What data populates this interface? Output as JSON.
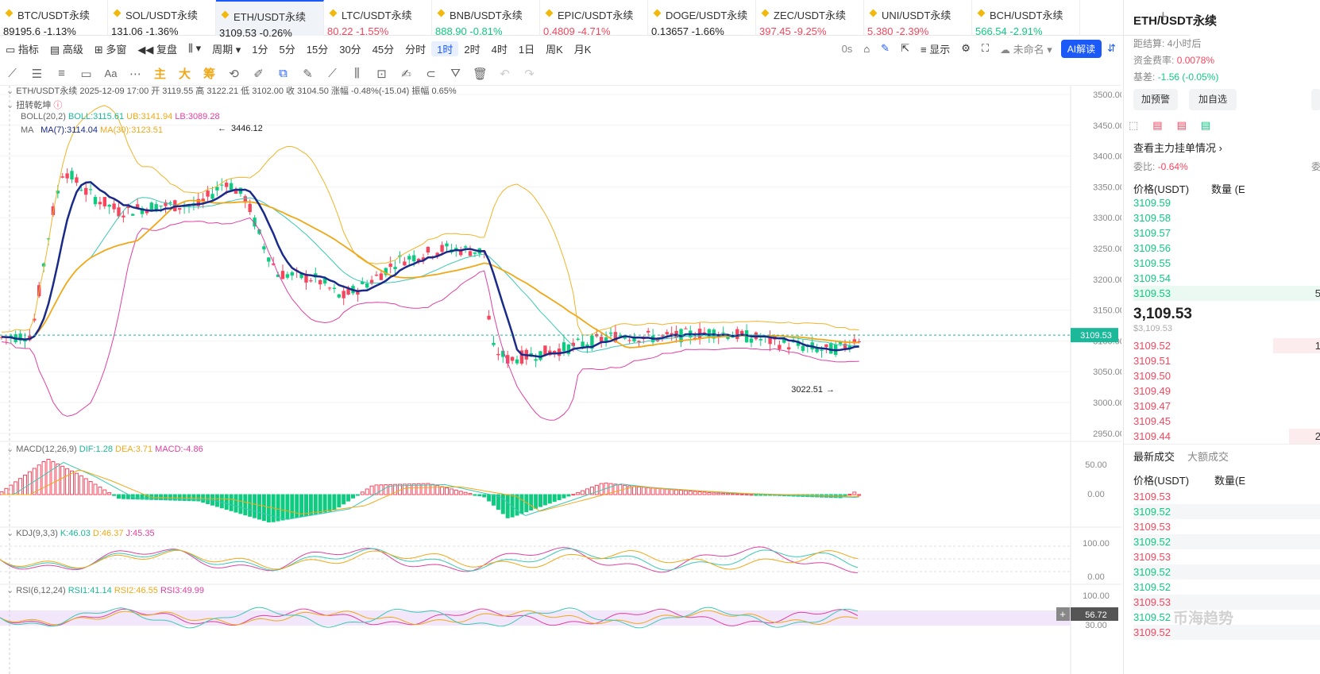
{
  "tickers": [
    {
      "name": "BTC/USDT永续",
      "price": "89195.6",
      "change": "-1.13%",
      "price_color": "blk"
    },
    {
      "name": "SOL/USDT永续",
      "price": "131.06",
      "change": "-1.36%",
      "price_color": "blk"
    },
    {
      "name": "ETH/USDT永续",
      "price": "3109.53",
      "change": "-0.26%",
      "price_color": "blk"
    },
    {
      "name": "LTC/USDT永续",
      "price": "80.22",
      "change": "-1.55%",
      "price_color": "dn"
    },
    {
      "name": "BNB/USDT永续",
      "price": "888.90",
      "change": "-0.81%",
      "price_color": "up"
    },
    {
      "name": "EPIC/USDT永续",
      "price": "0.4809",
      "change": "-4.71%",
      "price_color": "dn"
    },
    {
      "name": "DOGE/USDT永续",
      "price": "0.13657",
      "change": "-1.66%",
      "price_color": "blk"
    },
    {
      "name": "ZEC/USDT永续",
      "price": "397.45",
      "change": "-9.25%",
      "price_color": "dn"
    },
    {
      "name": "UNI/USDT永续",
      "price": "5.380",
      "change": "-2.39%",
      "price_color": "dn"
    },
    {
      "name": "BCH/USDT永续",
      "price": "566.54",
      "change": "-2.91%",
      "price_color": "up"
    }
  ],
  "toolbar": {
    "indicator": "指标",
    "advanced": "高级",
    "multi": "多窗",
    "replay": "复盘",
    "period": "周期",
    "intervals": [
      "1分",
      "5分",
      "15分",
      "30分",
      "45分",
      "分时",
      "1时",
      "2时",
      "4时",
      "1日",
      "周K",
      "月K"
    ],
    "active_interval": "1时",
    "zero_s": "0s",
    "display": "显示",
    "unnamed": "未命名",
    "ai": "AI解读"
  },
  "draw_labels": [
    "主",
    "大",
    "筹"
  ],
  "chart_info": {
    "symbol_line": "ETH/USDT永续 2025-12-09 17:00 开 3119.55 高 3122.21 低 3102.00 收 3104.50 涨幅 -0.48%(-15.04) 振幅 0.65%",
    "twist": "扭转乾坤",
    "boll_label": "BOLL(20,2)",
    "boll": "BOLL:3115.61",
    "ub": "UB:3141.94",
    "lb": "LB:3089.28",
    "ma_label": "MA",
    "ma7": "MA(7):3114.04",
    "ma30": "MA(30):3123.51",
    "high_mark": "3446.12",
    "low_mark": "3022.51",
    "current": "3109.53",
    "macd_label": "MACD(12,26,9)",
    "dif": "DIF:1.28",
    "dea": "DEA:3.71",
    "macd": "MACD:-4.86",
    "kdj_label": "KDJ(9,3,3)",
    "k": "K:46.03",
    "d": "D:46.37",
    "j": "J:45.35",
    "rsi_label": "RSI(6,12,24)",
    "rsi1": "RSI1:41.14",
    "rsi2": "RSI2:46.55",
    "rsi3": "RSI3:49.99",
    "rsi_now": "56.72"
  },
  "price_axis": [
    "3500.00",
    "3450.00",
    "3400.00",
    "3350.00",
    "3300.00",
    "3250.00",
    "3200.00",
    "3150.00",
    "3100.00",
    "3050.00",
    "3000.00",
    "2950.00"
  ],
  "macd_axis": [
    "50.00",
    "0.00"
  ],
  "kdj_axis": [
    "100.00",
    "0.00"
  ],
  "rsi_axis": [
    "100.00",
    "30.00"
  ],
  "side": {
    "title": "ETH/USDT永续",
    "settle_label": "距结算:",
    "settle": "4小时后",
    "funding_label": "资金费率:",
    "funding": "0.0078%",
    "basis_label": "基差:",
    "basis": "-1.56 (-0.05%)",
    "btn_alert": "加预警",
    "btn_watch": "加自选",
    "orders_link": "查看主力挂单情况",
    "ratio_label": "委比:",
    "ratio": "-0.64%",
    "ratio_right": "委",
    "col_price": "价格(USDT)",
    "col_qty": "数量 (E",
    "asks": [
      "3109.59",
      "3109.58",
      "3109.57",
      "3109.56",
      "3109.55",
      "3109.54",
      "3109.53"
    ],
    "ask_last_qty": "5",
    "last_price": "3,109.53",
    "last_price_usd": "$3,109.53",
    "bids": [
      "3109.52",
      "3109.51",
      "3109.50",
      "3109.49",
      "3109.47",
      "3109.45",
      "3109.44"
    ],
    "bid_qty": [
      "1",
      "",
      "",
      "",
      "",
      "",
      "2"
    ],
    "tab_latest": "最新成交",
    "tab_large": "大额成交",
    "col_price2": "价格(USDT)",
    "col_qty2": "数量(E",
    "trades": [
      [
        "3109.53",
        "dn"
      ],
      [
        "3109.52",
        "up"
      ],
      [
        "3109.53",
        "dn"
      ],
      [
        "3109.52",
        "up"
      ],
      [
        "3109.53",
        "dn"
      ],
      [
        "3109.52",
        "up"
      ],
      [
        "3109.52",
        "up"
      ],
      [
        "3109.53",
        "dn"
      ],
      [
        "3109.52",
        "up"
      ],
      [
        "3109.52",
        "dn"
      ]
    ],
    "watermark": "币海趋势"
  }
}
